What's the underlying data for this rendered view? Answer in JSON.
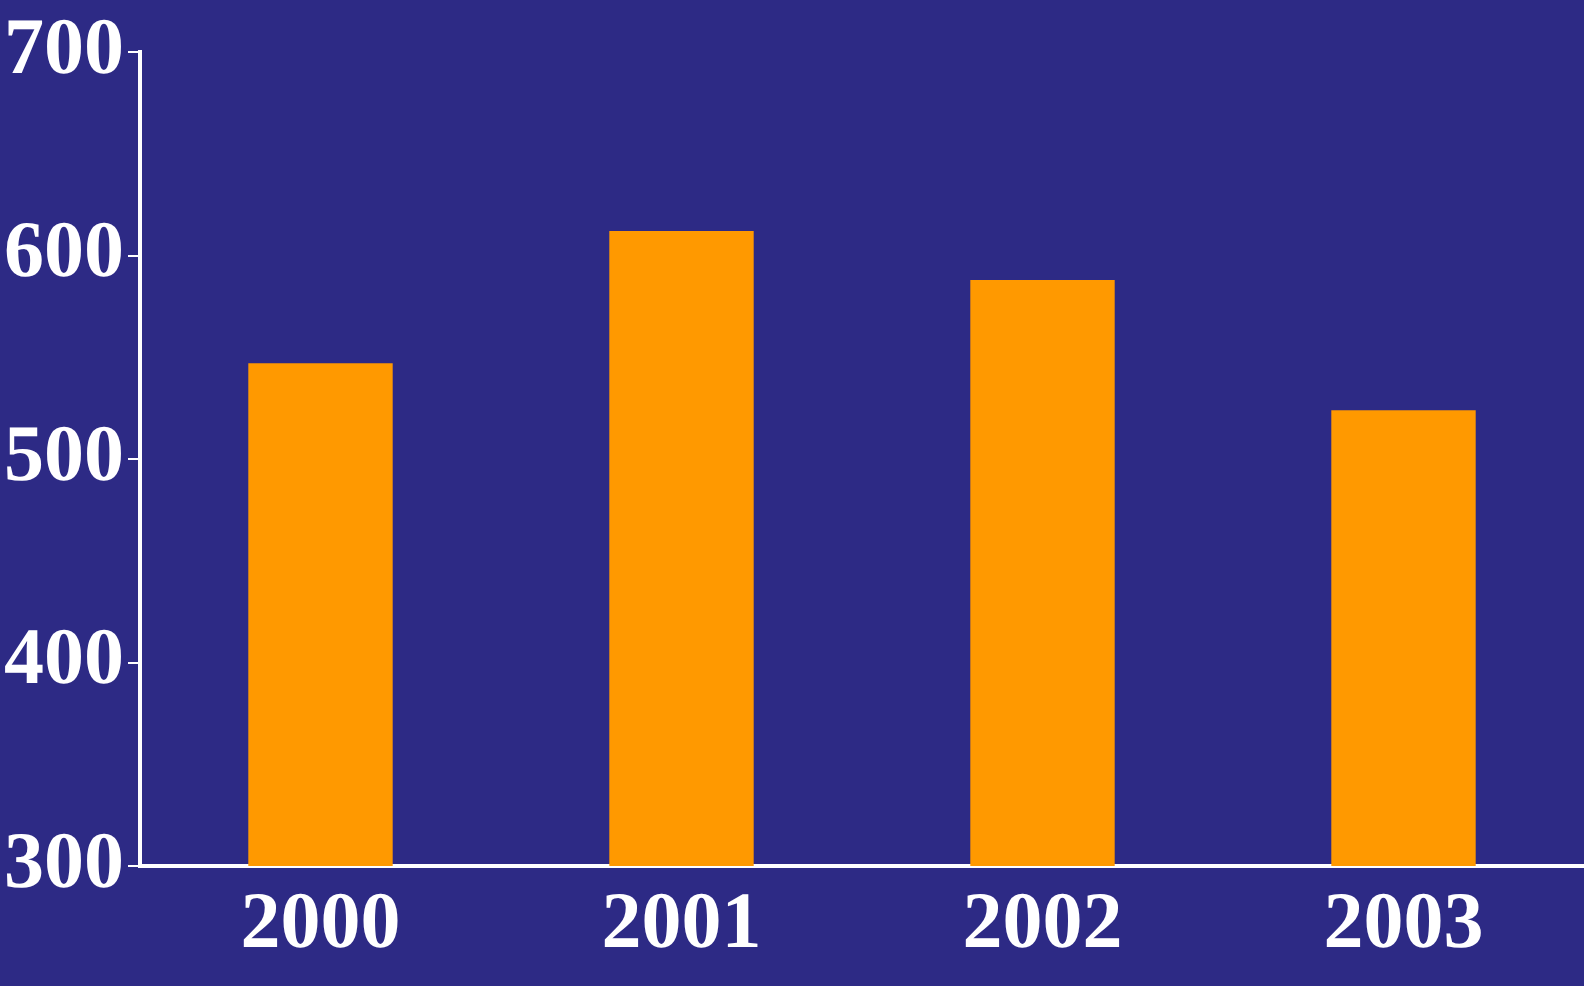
{
  "chart_data": {
    "type": "bar",
    "categories": [
      "2000",
      "2001",
      "2002",
      "2003"
    ],
    "values": [
      547,
      612,
      588,
      524
    ],
    "color": "#ff9900",
    "ylim": [
      300,
      700
    ],
    "yticks": [
      300,
      400,
      500,
      600,
      700
    ],
    "grid": false
  }
}
